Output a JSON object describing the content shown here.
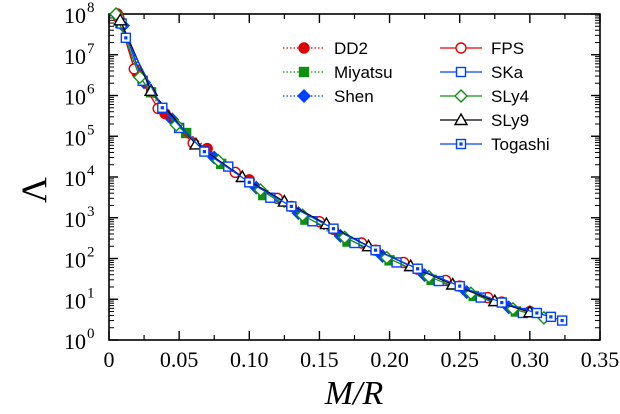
{
  "chart_data": {
    "type": "scatter",
    "xlabel": "M/R",
    "ylabel": "Λ",
    "xlim": [
      0,
      0.35
    ],
    "ylim_log10": [
      0,
      8
    ],
    "y_scale": "log",
    "x_ticks": [
      "0",
      "0.05",
      "0.10",
      "0.15",
      "0.20",
      "0.25",
      "0.30",
      "0.35"
    ],
    "y_tick_exponents": [
      "0",
      "1",
      "2",
      "3",
      "4",
      "5",
      "6",
      "7",
      "8"
    ],
    "y_tick_base": "10",
    "legend_placement": "top-right",
    "series": [
      {
        "name": "DD2",
        "color": "#e00000",
        "marker": "circle",
        "filled": true,
        "style": "dotted",
        "x": [
          0.006,
          0.02,
          0.04,
          0.07,
          0.1,
          0.13,
          0.16,
          0.19,
          0.22,
          0.25,
          0.28,
          0.3
        ],
        "y": [
          100000000.0,
          3600000.0,
          360000.0,
          50000.0,
          8500.0,
          1900.0,
          520.0,
          160.0,
          55.0,
          21.0,
          8.5,
          5.0
        ]
      },
      {
        "name": "Miyatsu",
        "color": "#109010",
        "marker": "square",
        "filled": true,
        "style": "dotted",
        "x": [
          0.008,
          0.03,
          0.055,
          0.08,
          0.11,
          0.14,
          0.17,
          0.2,
          0.23,
          0.26,
          0.29
        ],
        "y": [
          60000000.0,
          1200000.0,
          120000.0,
          21000.0,
          3600.0,
          900.0,
          260.0,
          90.0,
          30.0,
          12.0,
          5.0
        ]
      },
      {
        "name": "Shen",
        "color": "#0040ff",
        "marker": "diamond",
        "filled": true,
        "style": "dotted",
        "x": [
          0.01,
          0.025,
          0.045,
          0.075,
          0.105,
          0.135,
          0.165,
          0.195,
          0.225,
          0.255,
          0.285
        ],
        "y": [
          52000000.0,
          2100000.0,
          260000.0,
          30000.0,
          5500.0,
          1300.0,
          360.0,
          115.0,
          39.0,
          15.0,
          6.3
        ]
      },
      {
        "name": "FPS",
        "color": "#e00000",
        "marker": "circle",
        "filled": false,
        "style": "solid",
        "x": [
          0.007,
          0.018,
          0.035,
          0.06,
          0.09,
          0.12,
          0.15,
          0.18,
          0.21,
          0.24,
          0.27
        ],
        "y": [
          80000000.0,
          4500000.0,
          480000.0,
          68000.0,
          13000.0,
          3000.0,
          800.0,
          240.0,
          80.0,
          29.0,
          11.0
        ]
      },
      {
        "name": "SKa",
        "color": "#0040ff",
        "marker": "square",
        "filled": false,
        "style": "solid",
        "x": [
          0.009,
          0.024,
          0.05,
          0.085,
          0.115,
          0.145,
          0.175,
          0.205,
          0.235,
          0.265,
          0.295
        ],
        "y": [
          58000000.0,
          2300000.0,
          160000.0,
          18000.0,
          3100.0,
          820.0,
          240.0,
          80.0,
          28.0,
          11.0,
          4.6
        ]
      },
      {
        "name": "SLy4",
        "color": "#109010",
        "marker": "diamond",
        "filled": false,
        "style": "solid",
        "x": [
          0.005,
          0.022,
          0.048,
          0.078,
          0.108,
          0.138,
          0.168,
          0.198,
          0.228,
          0.258,
          0.288,
          0.31
        ],
        "y": [
          100000000.0,
          2800000.0,
          190000.0,
          25000.0,
          4800.0,
          1150.0,
          330.0,
          105.0,
          36.0,
          14.0,
          5.8,
          3.5
        ]
      },
      {
        "name": "SLy9",
        "color": "#000000",
        "marker": "triangle",
        "filled": false,
        "style": "solid",
        "x": [
          0.008,
          0.03,
          0.062,
          0.095,
          0.125,
          0.155,
          0.185,
          0.215,
          0.245,
          0.275,
          0.3
        ],
        "y": [
          70000000.0,
          1300000.0,
          63000.0,
          10000.0,
          2500.0,
          700.0,
          200.0,
          65.0,
          23.0,
          9.0,
          4.8
        ]
      },
      {
        "name": "Togashi",
        "color": "#0040ff",
        "marker": "square-dot",
        "filled": false,
        "style": "solid",
        "x": [
          0.012,
          0.038,
          0.068,
          0.1,
          0.13,
          0.16,
          0.19,
          0.22,
          0.25,
          0.28,
          0.305,
          0.315,
          0.323
        ],
        "y": [
          26000000.0,
          500000.0,
          42000.0,
          7400.0,
          1900.0,
          540.0,
          160.0,
          56.0,
          21.0,
          8.3,
          4.6,
          3.7,
          3.0
        ]
      }
    ]
  }
}
